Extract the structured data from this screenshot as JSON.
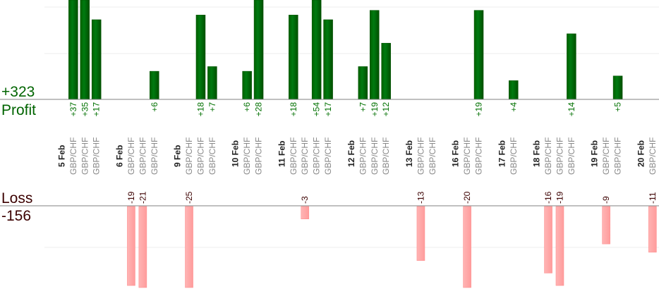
{
  "chart_data": {
    "type": "bar",
    "title": "",
    "profit_label": "Profit",
    "loss_label": "Loss",
    "profit_total": "+323",
    "loss_total": "-156",
    "profit_ylim": [
      0,
      21
    ],
    "loss_ylim": [
      -20,
      0
    ],
    "grid": true,
    "colors": {
      "profit": "#006400",
      "profit_text": "#007000",
      "loss": "#ffaaaa",
      "loss_text": "#3c0000",
      "instrument_text": "#888888"
    },
    "days": [
      {
        "date": "5 Feb",
        "trades": [
          {
            "symbol": "GBP/CHF",
            "value": 37,
            "label": "+37"
          },
          {
            "symbol": "GBP/CHF",
            "value": 35,
            "label": "+35"
          },
          {
            "symbol": "GBP/CHF",
            "value": 17,
            "label": "+17"
          }
        ]
      },
      {
        "date": "6 Feb",
        "trades": [
          {
            "symbol": "GBP/CHF",
            "value": -19,
            "label": "-19"
          },
          {
            "symbol": "GBP/CHF",
            "value": -21,
            "label": "-21"
          },
          {
            "symbol": "GBP/CHF",
            "value": 6,
            "label": "+6"
          }
        ]
      },
      {
        "date": "9 Feb",
        "trades": [
          {
            "symbol": "GBP/CHF",
            "value": -25,
            "label": "-25"
          },
          {
            "symbol": "GBP/CHF",
            "value": 18,
            "label": "+18"
          },
          {
            "symbol": "GBP/CHF",
            "value": 7,
            "label": "+7"
          }
        ]
      },
      {
        "date": "10 Feb",
        "trades": [
          {
            "symbol": "GBP/CHF",
            "value": 6,
            "label": "+6"
          },
          {
            "symbol": "GBP/CHF",
            "value": 28,
            "label": "+28"
          }
        ]
      },
      {
        "date": "11 Feb",
        "trades": [
          {
            "symbol": "GBP/CHF",
            "value": 18,
            "label": "+18"
          },
          {
            "symbol": "GBP/CHF",
            "value": -3,
            "label": "-3"
          },
          {
            "symbol": "GBP/CHF",
            "value": 54,
            "label": "+54"
          },
          {
            "symbol": "GBP/CHF",
            "value": 17,
            "label": "+17"
          }
        ]
      },
      {
        "date": "12 Feb",
        "trades": [
          {
            "symbol": "GBP/CHF",
            "value": 7,
            "label": "+7"
          },
          {
            "symbol": "GBP/CHF",
            "value": 19,
            "label": "+19"
          },
          {
            "symbol": "GBP/CHF",
            "value": 12,
            "label": "+12"
          }
        ]
      },
      {
        "date": "13 Feb",
        "trades": [
          {
            "symbol": "GBP/CHF",
            "value": -13,
            "label": "-13"
          },
          {
            "symbol": "GBP/CHF",
            "value": 0,
            "label": ""
          }
        ]
      },
      {
        "date": "16 Feb",
        "trades": [
          {
            "symbol": "GBP/CHF",
            "value": -20,
            "label": "-20"
          },
          {
            "symbol": "GBP/CHF",
            "value": 19,
            "label": "+19"
          }
        ]
      },
      {
        "date": "17 Feb",
        "trades": [
          {
            "symbol": "GBP/CHF",
            "value": 4,
            "label": "+4"
          }
        ]
      },
      {
        "date": "18 Feb",
        "trades": [
          {
            "symbol": "GBP/CHF",
            "value": -16,
            "label": "-16"
          },
          {
            "symbol": "GBP/CHF",
            "value": -19,
            "label": "-19"
          },
          {
            "symbol": "GBP/CHF",
            "value": 14,
            "label": "+14"
          }
        ]
      },
      {
        "date": "19 Feb",
        "trades": [
          {
            "symbol": "GBP/CHF",
            "value": -9,
            "label": "-9"
          },
          {
            "symbol": "GBP/CHF",
            "value": 5,
            "label": "+5"
          }
        ]
      },
      {
        "date": "20 Feb",
        "trades": [
          {
            "symbol": "GBP/CHF",
            "value": -11,
            "label": "-11"
          }
        ]
      }
    ]
  }
}
